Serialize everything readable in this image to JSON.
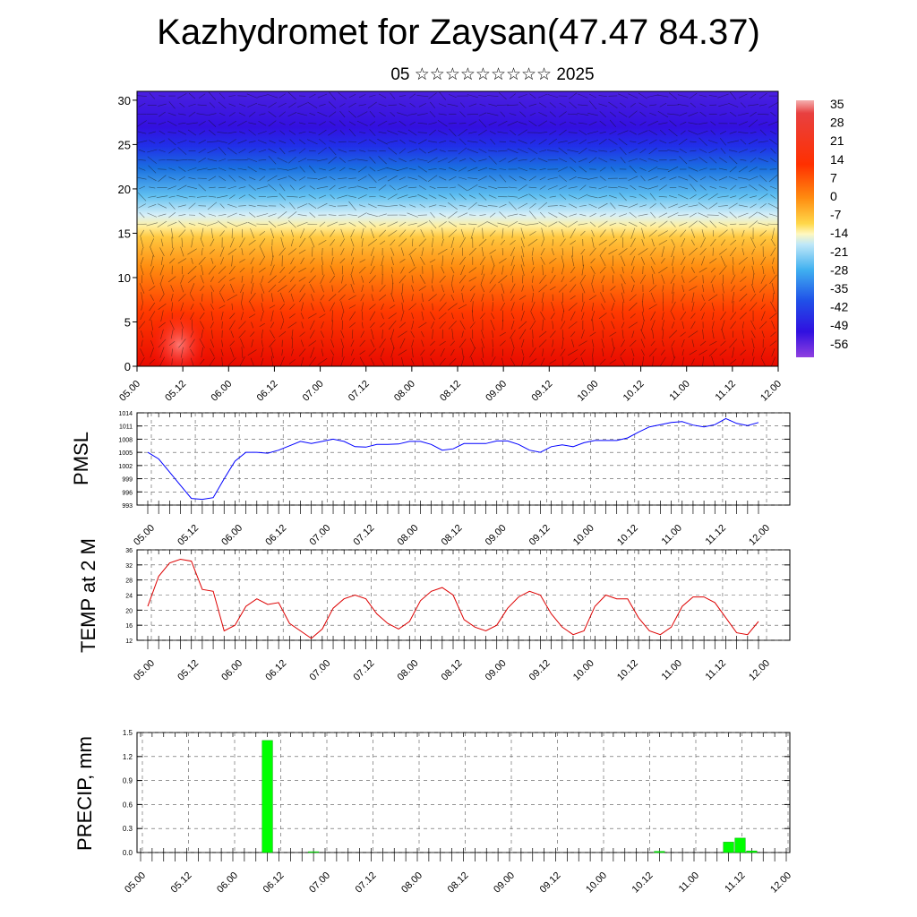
{
  "header": {
    "title": "Kazhydromet for Zaysan(47.47 84.37)",
    "subtitle": "05 ☆☆☆☆☆☆☆☆☆ 2025"
  },
  "chart_data": [
    {
      "type": "heatmap",
      "title": "",
      "xlabel": "",
      "ylabel": "",
      "x_tick_labels": [
        "05.00",
        "05.12",
        "06.00",
        "06.12",
        "07.00",
        "07.12",
        "08.00",
        "08.12",
        "09.00",
        "09.12",
        "10.00",
        "10.12",
        "11.00",
        "11.12",
        "12.00"
      ],
      "y_ticks": [
        0,
        5,
        10,
        15,
        20,
        25,
        30
      ],
      "ylim": [
        0,
        31
      ],
      "colorbar_labels": [
        "35",
        "28",
        "21",
        "14",
        "7",
        "0",
        "-7",
        "-14",
        "-21",
        "-28",
        "-35",
        "-42",
        "-49",
        "-56"
      ],
      "colors": {
        "warm_low": "#e60000",
        "mid": "#ffe27a",
        "cold_top": "#3a10e0"
      },
      "overlay": "wind arrows and contours"
    },
    {
      "type": "line",
      "ylabel": "PMSL",
      "x_tick_labels": [
        "05.00",
        "05.12",
        "06.00",
        "06.12",
        "07.00",
        "07.12",
        "08.00",
        "08.12",
        "09.00",
        "09.12",
        "10.00",
        "10.12",
        "11.00",
        "11.12",
        "12.00"
      ],
      "y_tick_labels": [
        "1014",
        "1011",
        "1008",
        "1005",
        "1002",
        "999",
        "996",
        "993"
      ],
      "ylim": [
        993,
        1014
      ],
      "series": [
        {
          "color": "#0000ff",
          "values": [
            1005,
            1003.5,
            1000.5,
            997.5,
            994.5,
            994.3,
            994.7,
            999,
            1003,
            1005,
            1005,
            1004.8,
            1005.5,
            1006.5,
            1007.5,
            1007,
            1007.5,
            1008,
            1007.5,
            1006.3,
            1006.2,
            1006.8,
            1006.8,
            1006.9,
            1007.5,
            1007.5,
            1006.8,
            1005.5,
            1005.8,
            1007,
            1007,
            1007,
            1007.6,
            1007.6,
            1006.8,
            1005.5,
            1005,
            1006.3,
            1006.7,
            1006.3,
            1007.2,
            1007.7,
            1007.7,
            1007.7,
            1008.3,
            1009.6,
            1010.8,
            1011.3,
            1011.8,
            1012,
            1011.2,
            1010.8,
            1011.3,
            1012.7,
            1011.6,
            1011.1,
            1011.8
          ]
        }
      ]
    },
    {
      "type": "line",
      "ylabel": "TEMP at 2 M",
      "x_tick_labels": [
        "05.00",
        "05.12",
        "06.00",
        "06.12",
        "07.00",
        "07.12",
        "08.00",
        "08.12",
        "09.00",
        "09.12",
        "10.00",
        "10.12",
        "11.00",
        "11.12",
        "12.00"
      ],
      "y_tick_labels": [
        "36",
        "32",
        "28",
        "24",
        "20",
        "16",
        "12"
      ],
      "ylim": [
        12,
        36
      ],
      "series": [
        {
          "color": "#dd0000",
          "values": [
            21,
            29,
            32.5,
            33.5,
            33,
            25.5,
            25,
            14.5,
            16,
            21,
            23,
            21.5,
            22,
            16.5,
            14.5,
            12.5,
            15,
            20.5,
            23,
            24,
            23,
            19,
            16.5,
            15,
            17,
            22.5,
            25,
            26,
            24,
            17.5,
            15.5,
            14.5,
            16,
            20.5,
            23.5,
            25,
            24,
            19,
            15.5,
            13.5,
            14.5,
            21,
            24,
            23,
            23,
            18,
            14.5,
            13.5,
            15.5,
            21,
            23.5,
            23.5,
            22,
            18,
            14,
            13.5,
            17
          ]
        }
      ]
    },
    {
      "type": "bar",
      "ylabel": "PRECIP, mm",
      "x_tick_labels": [
        "05.00",
        "05.12",
        "06.00",
        "06.12",
        "07.00",
        "07.12",
        "08.00",
        "08.12",
        "09.00",
        "09.12",
        "10.00",
        "10.12",
        "11.00",
        "11.12",
        "12.00"
      ],
      "y_tick_labels": [
        "1.5",
        "1.2",
        "0.9",
        "0.6",
        "0.3",
        "0.0"
      ],
      "ylim": [
        0,
        1.5
      ],
      "series": [
        {
          "color": "#00ff00",
          "values": [
            0,
            0,
            0,
            0,
            0,
            0,
            0,
            0,
            0,
            0,
            0,
            1.4,
            0,
            0,
            0,
            0.01,
            0,
            0,
            0,
            0,
            0,
            0,
            0,
            0,
            0,
            0,
            0,
            0,
            0,
            0,
            0,
            0,
            0,
            0,
            0,
            0,
            0,
            0,
            0,
            0,
            0,
            0,
            0,
            0,
            0,
            0.015,
            0,
            0,
            0,
            0,
            0,
            0.13,
            0.18,
            0.02,
            0,
            0,
            0
          ]
        }
      ]
    }
  ]
}
